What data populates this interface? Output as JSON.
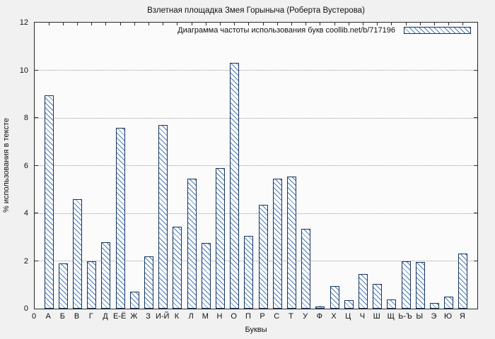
{
  "title": "Взлетная площадка Змея Горыныча (Роберта Вустерова)",
  "legend_label": "Диаграмма частоты использования букв coollib.net/b/717196",
  "xlabel": "Буквы",
  "ylabel": "% использования в тексте",
  "origin_label": "0",
  "colors": {
    "hatch": "#4a79b8",
    "bar_border": "#16355c",
    "bar_fill": "#fdfdfd",
    "plot_bg": "#fbfbfb",
    "figure_bg": "#f1f1f1"
  },
  "chart_data": {
    "type": "bar",
    "title": "Взлетная площадка Змея Горыныча (Роберта Вустерова)",
    "xlabel": "Буквы",
    "ylabel": "% использования в тексте",
    "legend": "Диаграмма частоты использования букв coollib.net/b/717196",
    "legend_position": "top-right",
    "grid": true,
    "ylim": [
      0,
      12
    ],
    "yticks": [
      0,
      2,
      4,
      6,
      8,
      10,
      12
    ],
    "categories": [
      "А",
      "Б",
      "В",
      "Г",
      "Д",
      "Е-Ё",
      "Ж",
      "З",
      "И-Й",
      "К",
      "Л",
      "М",
      "Н",
      "О",
      "П",
      "Р",
      "С",
      "Т",
      "У",
      "Ф",
      "Х",
      "Ц",
      "Ч",
      "Ш",
      "Щ",
      "Ь-Ъ",
      "Ы",
      "Э",
      "Ю",
      "Я"
    ],
    "values": [
      8.95,
      1.9,
      4.6,
      2.0,
      2.8,
      7.6,
      0.7,
      2.2,
      7.7,
      3.45,
      5.45,
      2.75,
      5.9,
      10.3,
      3.05,
      4.35,
      5.45,
      5.55,
      3.35,
      0.1,
      0.95,
      0.35,
      1.45,
      1.05,
      0.4,
      2.0,
      1.95,
      0.25,
      0.5,
      2.3
    ]
  }
}
